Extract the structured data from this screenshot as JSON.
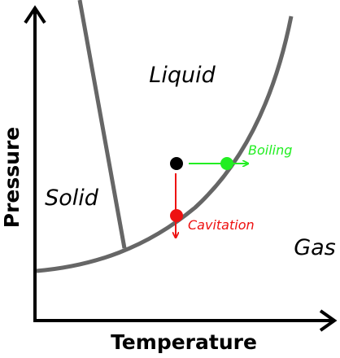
{
  "axes": {
    "x_label": "Temperature",
    "y_label": "Pressure"
  },
  "regions": {
    "liquid": "Liquid",
    "solid": "Solid",
    "gas": "Gas"
  },
  "annotations": {
    "boiling": {
      "label": "Boiling",
      "color": "#22ee22"
    },
    "cavitation": {
      "label": "Cavitation",
      "color": "#ee1111"
    }
  },
  "colors": {
    "phase_boundary": "#666666",
    "axis": "#000000",
    "start_point": "#000000"
  }
}
